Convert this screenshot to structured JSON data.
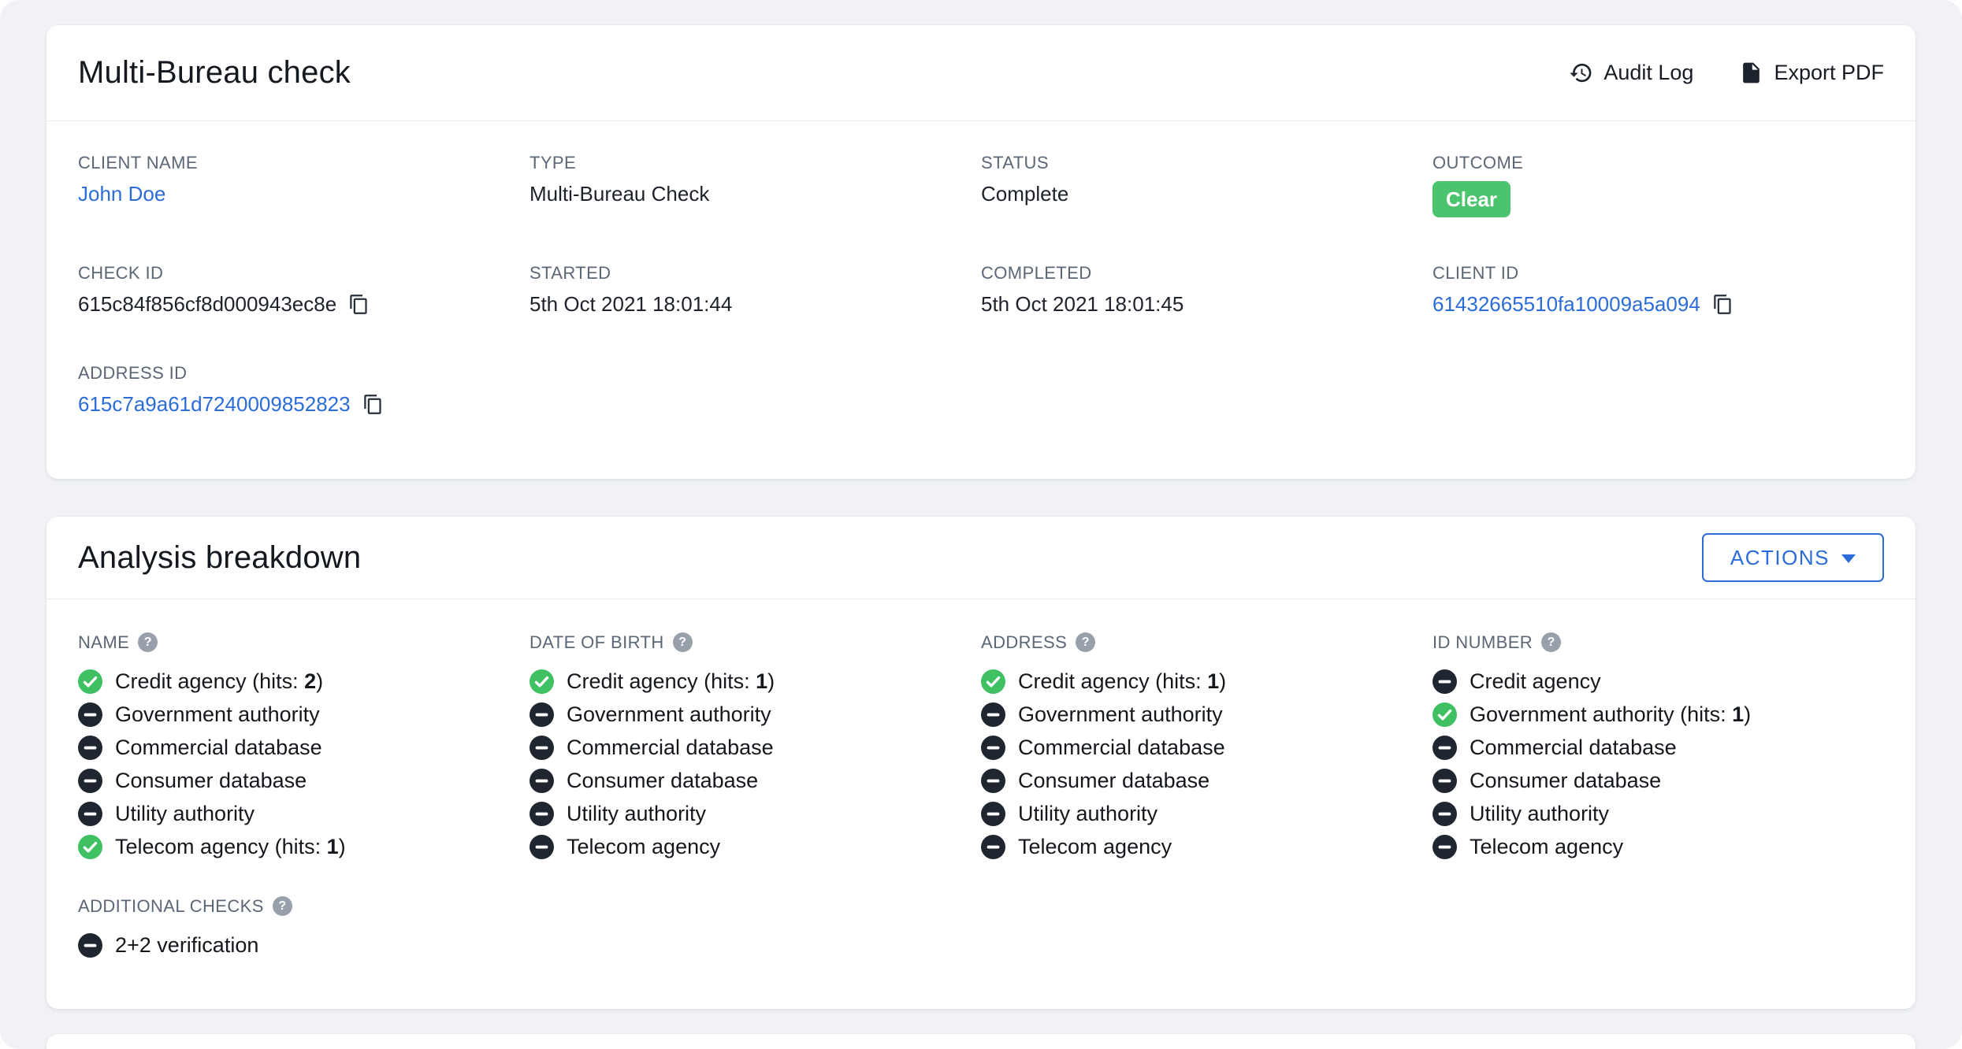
{
  "colors": {
    "page_bg": "#f0f2f5",
    "card_bg": "#ffffff",
    "link_blue": "#2b6cd9",
    "badge_green": "#4cc46d",
    "match_green": "#3fc163",
    "no_match_dark": "#1f2630",
    "label_gray": "#5b6676",
    "text_dark": "#15191f",
    "help_gray": "#97a0ab",
    "divider": "#e7eaee"
  },
  "icons": {
    "help_glyph": "?",
    "audit_log": "history-icon",
    "export_pdf": "pdf-file-icon",
    "copy": "copy-icon",
    "match": "check-circle-icon",
    "no_match": "minus-circle-icon",
    "actions_caret": "chevron-down-icon"
  },
  "check_card": {
    "title": "Multi-Bureau check",
    "audit_log_label": "Audit Log",
    "export_pdf_label": "Export PDF",
    "fields": [
      {
        "label": "CLIENT NAME",
        "value": "John Doe",
        "type": "link"
      },
      {
        "label": "TYPE",
        "value": "Multi-Bureau Check",
        "type": "text"
      },
      {
        "label": "STATUS",
        "value": "Complete",
        "type": "text"
      },
      {
        "label": "OUTCOME",
        "value": "Clear",
        "type": "badge"
      },
      {
        "label": "CHECK ID",
        "value": "615c84f856cf8d000943ec8e",
        "type": "text",
        "copy": true
      },
      {
        "label": "STARTED",
        "value": "5th Oct 2021 18:01:44",
        "type": "text"
      },
      {
        "label": "COMPLETED",
        "value": "5th Oct 2021 18:01:45",
        "type": "text"
      },
      {
        "label": "CLIENT ID",
        "value": "61432665510fa10009a5a094",
        "type": "link",
        "copy": true
      },
      {
        "label": "ADDRESS ID",
        "value": "615c7a9a61d7240009852823",
        "type": "link",
        "copy": true
      }
    ]
  },
  "analysis_card": {
    "title": "Analysis breakdown",
    "actions_label": "ACTIONS",
    "hits_prefix": "(hits: ",
    "hits_suffix": ")",
    "columns": [
      {
        "title": "NAME",
        "items": [
          {
            "label": "Credit agency",
            "status": "match",
            "hits": 2
          },
          {
            "label": "Government authority",
            "status": "none"
          },
          {
            "label": "Commercial database",
            "status": "none"
          },
          {
            "label": "Consumer database",
            "status": "none"
          },
          {
            "label": "Utility authority",
            "status": "none"
          },
          {
            "label": "Telecom agency",
            "status": "match",
            "hits": 1
          }
        ]
      },
      {
        "title": "DATE OF BIRTH",
        "items": [
          {
            "label": "Credit agency",
            "status": "match",
            "hits": 1
          },
          {
            "label": "Government authority",
            "status": "none"
          },
          {
            "label": "Commercial database",
            "status": "none"
          },
          {
            "label": "Consumer database",
            "status": "none"
          },
          {
            "label": "Utility authority",
            "status": "none"
          },
          {
            "label": "Telecom agency",
            "status": "none"
          }
        ]
      },
      {
        "title": "ADDRESS",
        "items": [
          {
            "label": "Credit agency",
            "status": "match",
            "hits": 1
          },
          {
            "label": "Government authority",
            "status": "none"
          },
          {
            "label": "Commercial database",
            "status": "none"
          },
          {
            "label": "Consumer database",
            "status": "none"
          },
          {
            "label": "Utility authority",
            "status": "none"
          },
          {
            "label": "Telecom agency",
            "status": "none"
          }
        ]
      },
      {
        "title": "ID NUMBER",
        "items": [
          {
            "label": "Credit agency",
            "status": "none"
          },
          {
            "label": "Government authority",
            "status": "match",
            "hits": 1
          },
          {
            "label": "Commercial database",
            "status": "none"
          },
          {
            "label": "Consumer database",
            "status": "none"
          },
          {
            "label": "Utility authority",
            "status": "none"
          },
          {
            "label": "Telecom agency",
            "status": "none"
          }
        ]
      }
    ],
    "additional": {
      "title": "ADDITIONAL CHECKS",
      "items": [
        {
          "label": "2+2 verification",
          "status": "none"
        }
      ]
    }
  }
}
